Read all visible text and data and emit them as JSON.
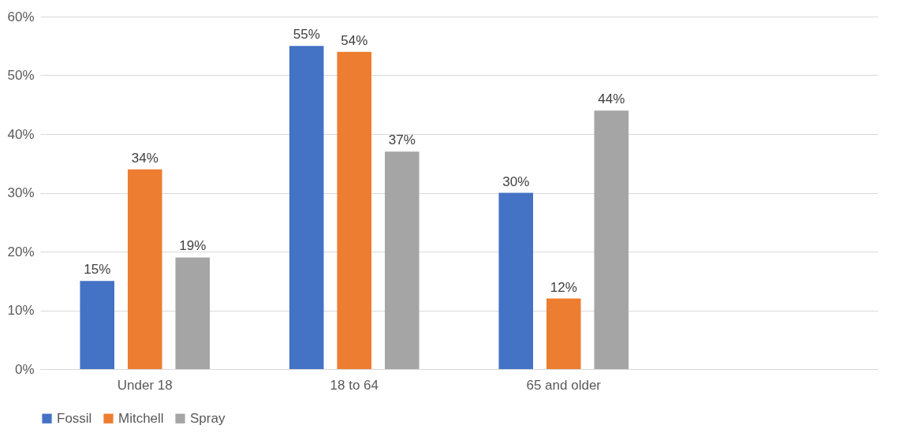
{
  "chart_data": {
    "type": "bar",
    "categories": [
      "Under 18",
      "18 to 64",
      "65 and older",
      null
    ],
    "series": [
      {
        "name": "Fossil",
        "color": "#4472c4",
        "values": [
          15,
          55,
          30,
          null
        ],
        "value_labels": [
          "15%",
          "55%",
          "30%",
          null
        ]
      },
      {
        "name": "Mitchell",
        "color": "#ed7d31",
        "values": [
          34,
          54,
          12,
          null
        ],
        "value_labels": [
          "34%",
          "54%",
          "12%",
          null
        ]
      },
      {
        "name": "Spray",
        "color": "#a5a5a5",
        "values": [
          19,
          37,
          44,
          null
        ],
        "value_labels": [
          "19%",
          "37%",
          "44%",
          null
        ]
      }
    ],
    "ylim": [
      0,
      60
    ],
    "yticks": [
      {
        "value": 0,
        "label": "0%"
      },
      {
        "value": 10,
        "label": "10%"
      },
      {
        "value": 20,
        "label": "20%"
      },
      {
        "value": 30,
        "label": "30%"
      },
      {
        "value": 40,
        "label": "40%"
      },
      {
        "value": 50,
        "label": "50%"
      },
      {
        "value": 60,
        "label": "60%"
      }
    ],
    "grid": "y",
    "legend": "bottom"
  }
}
